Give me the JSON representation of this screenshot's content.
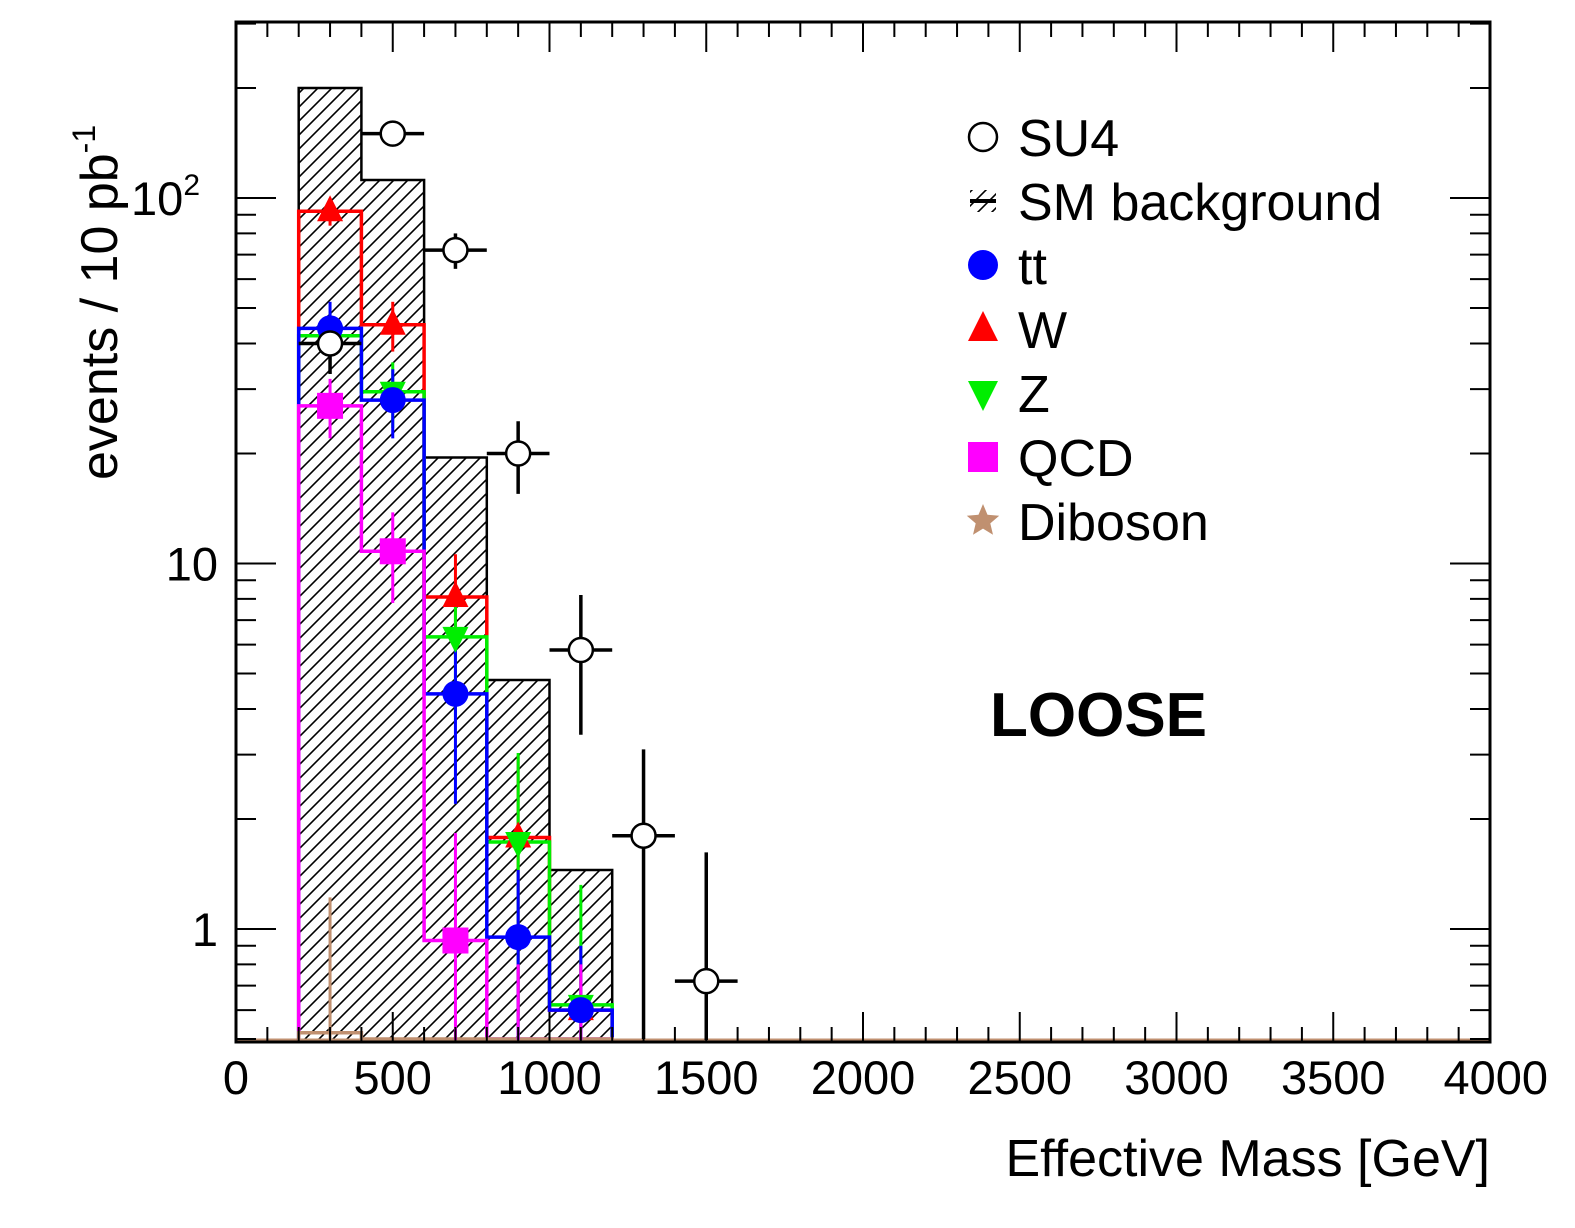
{
  "chart_data": {
    "type": "histogram",
    "xlabel": "Effective Mass [GeV]",
    "ylabel_main": "events / 10 pb",
    "ylabel_sup": "-1",
    "yscale": "log",
    "xlim": [
      0,
      4000
    ],
    "ylim": [
      0.5,
      300
    ],
    "x_ticks": [
      0,
      500,
      1000,
      1500,
      2000,
      2500,
      3000,
      3500,
      4000
    ],
    "y_tick_labels": [
      {
        "value": 1,
        "base": "1",
        "sup": ""
      },
      {
        "value": 10,
        "base": "10",
        "sup": ""
      },
      {
        "value": 100,
        "base": "10",
        "sup": "2"
      }
    ],
    "annotation": "LOOSE",
    "bin_edges": [
      200,
      400,
      600,
      800,
      1000,
      1200
    ],
    "series": [
      {
        "name": "SM background",
        "style": "hatched",
        "color": "#000000",
        "values": [
          200,
          112,
          19.5,
          4.8,
          1.45
        ]
      },
      {
        "name": "W",
        "style": "step",
        "color": "#ff0000",
        "marker": "triangle-up",
        "values": [
          92,
          45,
          8.1,
          1.78,
          0.6
        ],
        "errors": [
          8,
          7,
          2.5,
          1.2,
          0.3
        ]
      },
      {
        "name": "Z",
        "style": "step",
        "color": "#00ee00",
        "marker": "triangle-down",
        "values": [
          42,
          29.5,
          6.3,
          1.73,
          0.62
        ],
        "errors": [
          7,
          6,
          2.5,
          1.3,
          0.7
        ]
      },
      {
        "name": "tt",
        "style": "step",
        "color": "#0000ff",
        "marker": "circle",
        "values": [
          44,
          28,
          4.4,
          0.95,
          0.6
        ],
        "errors": [
          8,
          6,
          2.2,
          0.5,
          0.3
        ]
      },
      {
        "name": "QCD",
        "style": "step",
        "color": "#ff00ff",
        "marker": "square",
        "values": [
          27,
          10.8,
          0.93,
          0.5,
          0.5
        ],
        "errors": [
          5,
          3,
          0.9,
          0.3,
          0.3
        ]
      },
      {
        "name": "Diboson",
        "style": "step",
        "color": "#c09070",
        "marker": "star",
        "values": [
          0.52,
          0.5,
          0.5,
          0.5,
          0.5
        ],
        "errors": [
          0.7,
          0,
          0,
          0,
          0
        ]
      }
    ],
    "signal": {
      "name": "SU4",
      "marker": "open-circle",
      "color": "#000000",
      "points": [
        {
          "x": 300,
          "y": 40,
          "err_up": 7,
          "err_down": 7
        },
        {
          "x": 500,
          "y": 150,
          "err_up": 10,
          "err_down": 10
        },
        {
          "x": 700,
          "y": 72,
          "err_up": 8,
          "err_down": 8
        },
        {
          "x": 900,
          "y": 20,
          "err_up": 4.5,
          "err_down": 4.5
        },
        {
          "x": 1100,
          "y": 5.8,
          "err_up": 2.4,
          "err_down": 2.4
        },
        {
          "x": 1300,
          "y": 1.8,
          "err_up": 1.3,
          "err_down": 1.3
        },
        {
          "x": 1500,
          "y": 0.72,
          "err_up": 0.9,
          "err_down": 0.25
        }
      ]
    },
    "legend": {
      "placement": "top-right",
      "entries": [
        {
          "label": "SU4",
          "symbol": "open-circle",
          "color": "#000000"
        },
        {
          "label": "SM background",
          "symbol": "hatched",
          "color": "#000000"
        },
        {
          "label": "tt",
          "symbol": "circle",
          "color": "#0000ff"
        },
        {
          "label": "W",
          "symbol": "triangle-up",
          "color": "#ff0000"
        },
        {
          "label": "Z",
          "symbol": "triangle-down",
          "color": "#00ee00"
        },
        {
          "label": "QCD",
          "symbol": "square",
          "color": "#ff00ff"
        },
        {
          "label": "Diboson",
          "symbol": "star",
          "color": "#c09070"
        }
      ]
    }
  }
}
